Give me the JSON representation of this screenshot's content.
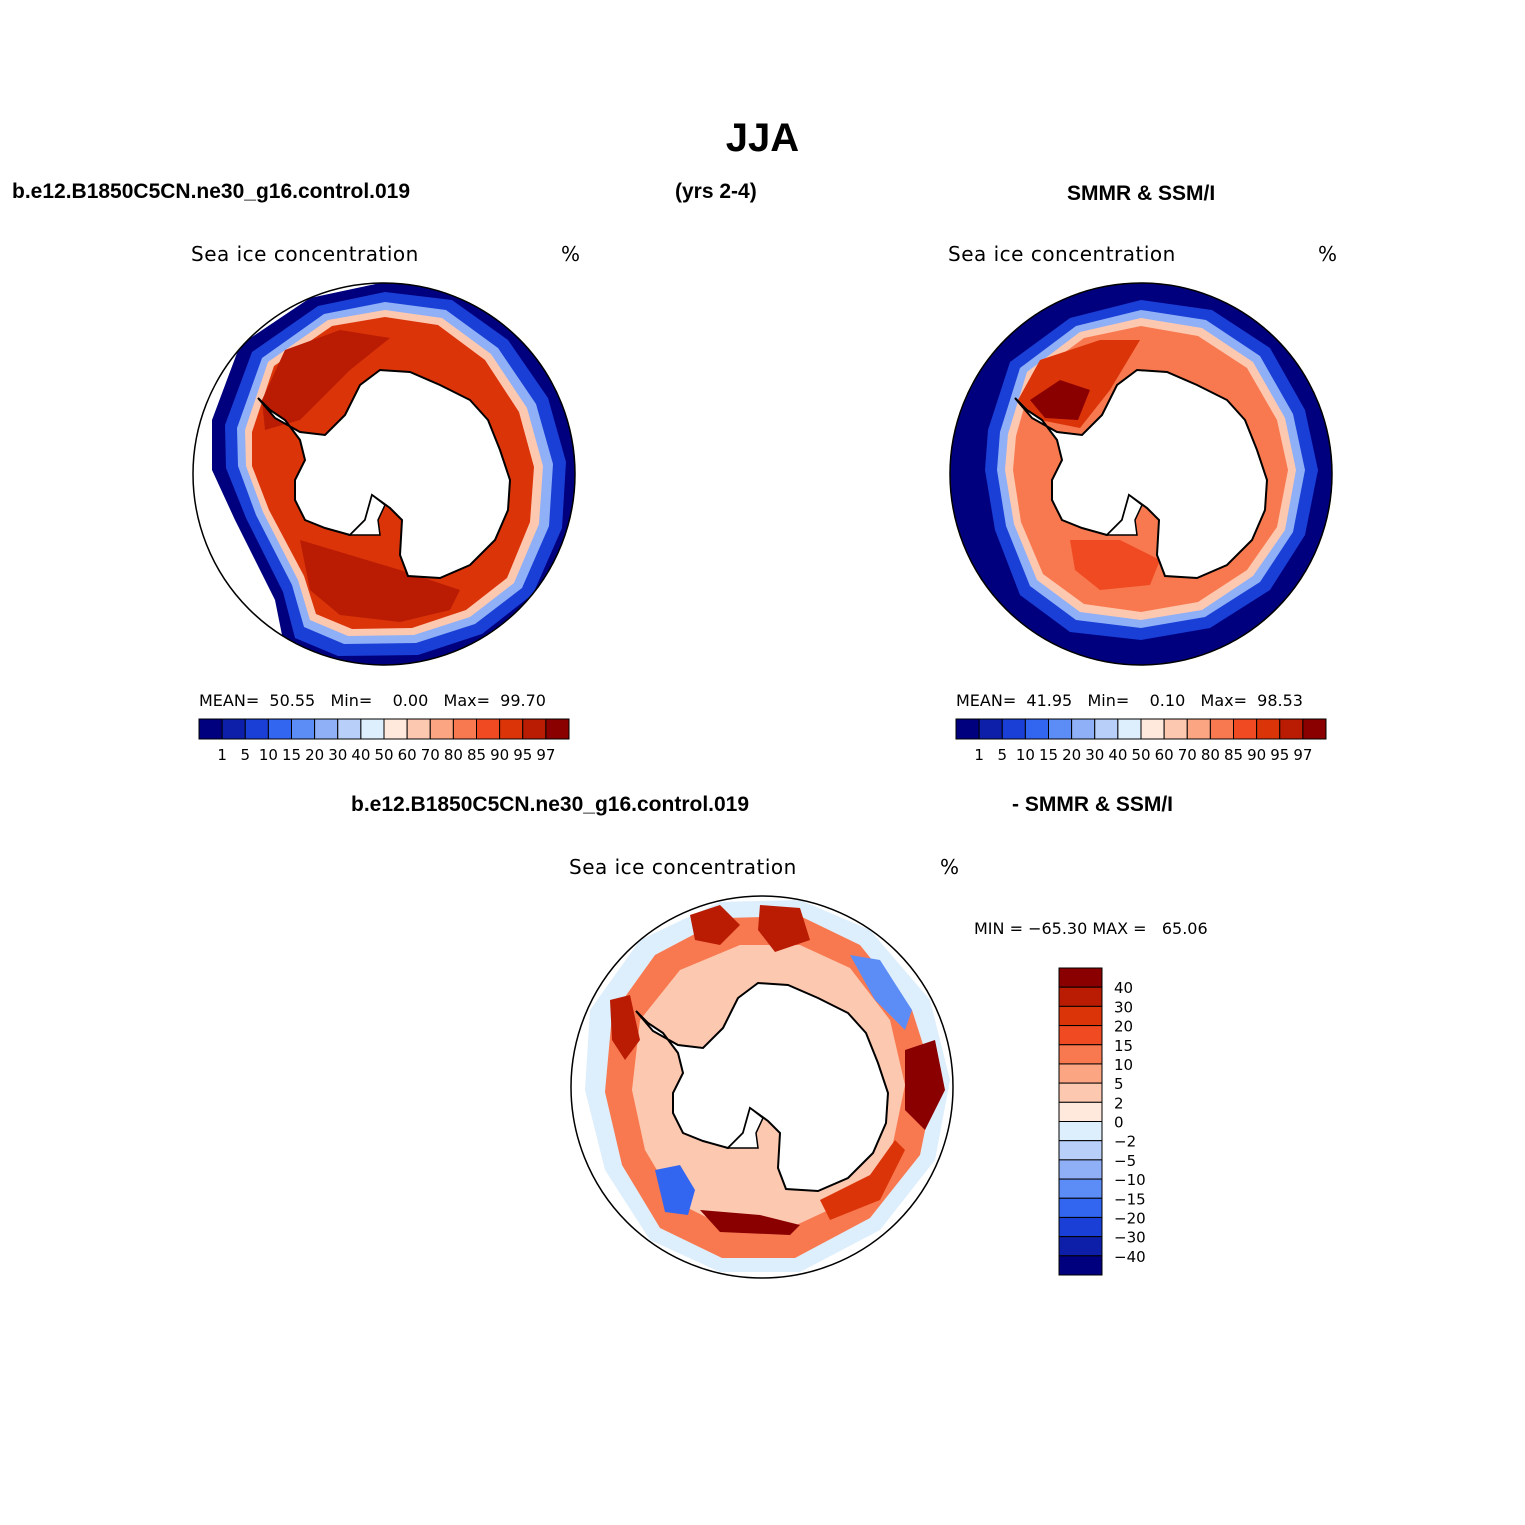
{
  "header": {
    "season": "JJA",
    "model_case": "b.e12.B1850C5CN.ne30_g16.control.019",
    "years": "(yrs 2-4)",
    "obs_name": "SMMR & SSM/I",
    "diff_model": "b.e12.B1850C5CN.ne30_g16.control.019",
    "diff_obs": "- SMMR & SSM/I"
  },
  "colors": {
    "ice_levels": [
      "#00007f",
      "#0d1fa8",
      "#1a3fd6",
      "#3366f0",
      "#5c8cf5",
      "#8fb0f7",
      "#b8cff9",
      "#ddeefc",
      "#ffe9dd",
      "#fdc8b0",
      "#fca582",
      "#f8794f",
      "#f04a22",
      "#dc3409",
      "#b91c03",
      "#8a0000"
    ],
    "diff_levels": [
      "#8a0000",
      "#b91c03",
      "#dc3409",
      "#f04a22",
      "#f8794f",
      "#fca582",
      "#fdc8b0",
      "#ffe9dd",
      "#ddeefc",
      "#b8cff9",
      "#8fb0f7",
      "#5c8cf5",
      "#3366f0",
      "#1a3fd6",
      "#0d1fa8",
      "#00007f"
    ]
  },
  "chart_data": [
    {
      "type": "heatmap",
      "panel": "model",
      "title": "Sea ice concentration",
      "units": "%",
      "stats": {
        "mean_label": "MEAN=",
        "mean": "50.55",
        "min_label": "Min=",
        "min": "0.00",
        "max_label": "Max=",
        "max": "99.70"
      },
      "colorbar_labels": [
        "1",
        "5",
        "10",
        "15",
        "20",
        "30",
        "40",
        "50",
        "60",
        "70",
        "80",
        "85",
        "90",
        "95",
        "97"
      ],
      "projection": "south polar stereographic"
    },
    {
      "type": "heatmap",
      "panel": "observations",
      "title": "Sea ice concentration",
      "units": "%",
      "stats": {
        "mean_label": "MEAN=",
        "mean": "41.95",
        "min_label": "Min=",
        "min": "0.10",
        "max_label": "Max=",
        "max": "98.53"
      },
      "colorbar_labels": [
        "1",
        "5",
        "10",
        "15",
        "20",
        "30",
        "40",
        "50",
        "60",
        "70",
        "80",
        "85",
        "90",
        "95",
        "97"
      ],
      "projection": "south polar stereographic"
    },
    {
      "type": "heatmap",
      "panel": "difference",
      "title": "Sea ice concentration",
      "units": "%",
      "stats_text": "MIN = −65.30 MAX =   65.06",
      "colorbar_labels": [
        "40",
        "30",
        "20",
        "15",
        "10",
        "5",
        "2",
        "0",
        "−2",
        "−5",
        "−10",
        "−15",
        "−20",
        "−30",
        "−40"
      ],
      "projection": "south polar stereographic"
    }
  ]
}
